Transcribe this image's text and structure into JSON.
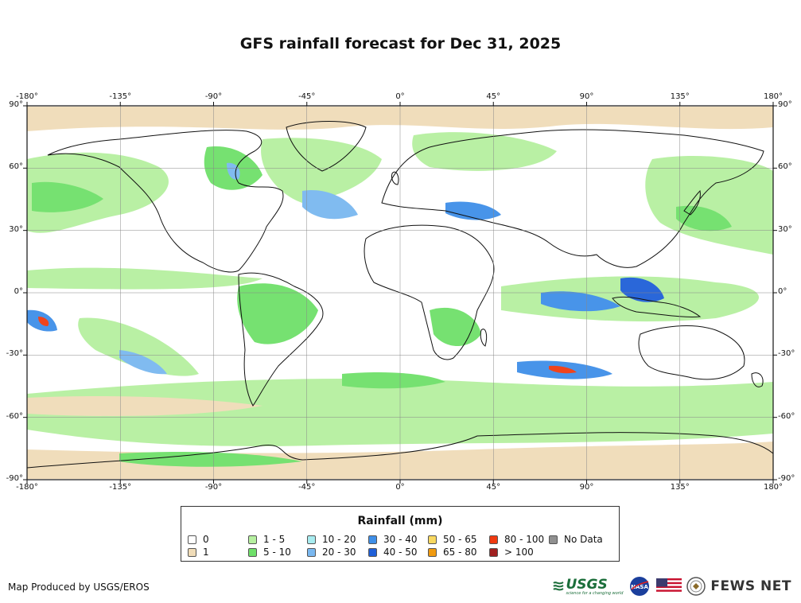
{
  "title": "GFS rainfall forecast for Dec 31, 2025",
  "map": {
    "lon_ticks_top": [
      "-180°",
      "-135°",
      "-90°",
      "-45°",
      "0°",
      "45°",
      "90°",
      "135°",
      "180°"
    ],
    "lon_ticks_bottom": [
      "-180°",
      "-135°",
      "-90°",
      "-45°",
      "0°",
      "45°",
      "90°",
      "135°",
      "180°"
    ],
    "lat_ticks_left": [
      "90°",
      "60°",
      "30°",
      "0°",
      "-30°",
      "-60°",
      "-90°"
    ],
    "lat_ticks_right": [
      "90°",
      "60°",
      "30°",
      "0°",
      "-30°",
      "-60°",
      "-90°"
    ],
    "lon_values": [
      -180,
      -135,
      -90,
      -45,
      0,
      45,
      90,
      135,
      180
    ],
    "lat_values": [
      90,
      60,
      30,
      0,
      -30,
      -60,
      -90
    ],
    "lon_range": [
      -180,
      180
    ],
    "lat_range": [
      -90,
      90
    ]
  },
  "legend": {
    "title": "Rainfall (mm)",
    "items": [
      {
        "label": "0",
        "color": "#ffffff"
      },
      {
        "label": "1",
        "color": "#f0dcb8"
      },
      {
        "label": "1 - 5",
        "color": "#b6f0a0"
      },
      {
        "label": "5 - 10",
        "color": "#6fe06a"
      },
      {
        "label": "10 - 20",
        "color": "#a8ecf0"
      },
      {
        "label": "20 - 30",
        "color": "#7ab8f0"
      },
      {
        "label": "30 - 40",
        "color": "#3f8fe8"
      },
      {
        "label": "40 - 50",
        "color": "#1f5fd8"
      },
      {
        "label": "50 - 65",
        "color": "#f8d860"
      },
      {
        "label": "65 - 80",
        "color": "#f09a10"
      },
      {
        "label": "80 - 100",
        "color": "#f03a10"
      },
      {
        "label": "> 100",
        "color": "#a02020"
      },
      {
        "label": "No Data",
        "color": "#909090"
      }
    ]
  },
  "footer": {
    "credit": "Map Produced by USGS/EROS",
    "logos": {
      "usgs": "USGS",
      "usgs_tagline": "science for a changing world",
      "nasa": "NASA",
      "fews": "FEWS NET"
    }
  }
}
